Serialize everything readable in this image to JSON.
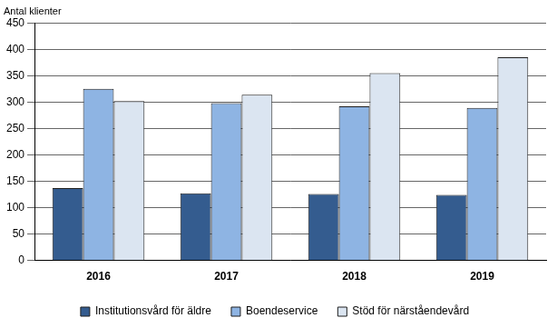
{
  "chart_data": {
    "type": "bar",
    "ylabel": "Antal klienter",
    "categories": [
      "2016",
      "2017",
      "2018",
      "2019"
    ],
    "series": [
      {
        "name": "Institutionsvård för äldre",
        "color": "#345c8f",
        "values": [
          137,
          127,
          126,
          124
        ]
      },
      {
        "name": "Boendeservice",
        "color": "#8eb4e3",
        "values": [
          325,
          298,
          292,
          289
        ]
      },
      {
        "name": "Stöd för närståendevård",
        "color": "#dbe5f1",
        "values": [
          302,
          314,
          355,
          385
        ]
      }
    ],
    "ylim": [
      0,
      450
    ],
    "yticks": [
      0,
      50,
      100,
      150,
      200,
      250,
      300,
      350,
      400,
      450
    ],
    "grid": true,
    "legend": "bottom"
  }
}
